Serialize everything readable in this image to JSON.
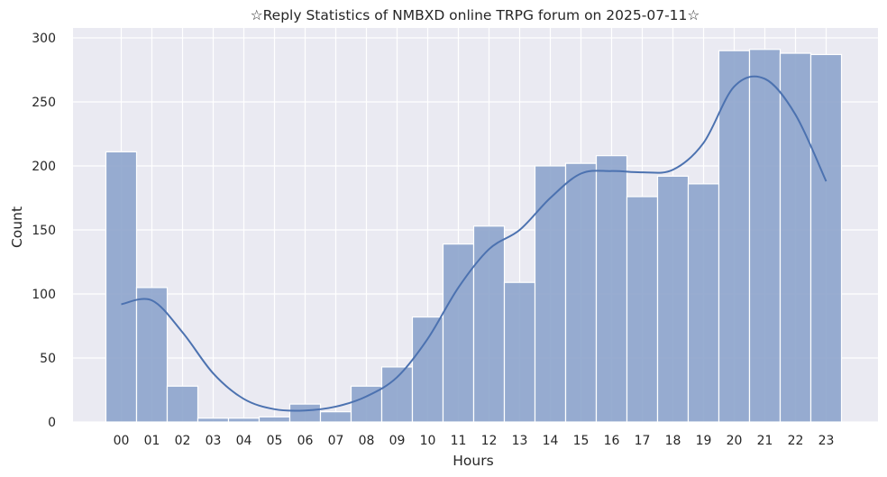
{
  "chart_data": {
    "type": "bar",
    "title": "☆Reply Statistics of NMBXD online TRPG forum on 2025-07-11☆",
    "xlabel": "Hours",
    "ylabel": "Count",
    "categories": [
      "00",
      "01",
      "02",
      "03",
      "04",
      "05",
      "06",
      "07",
      "08",
      "09",
      "10",
      "11",
      "12",
      "13",
      "14",
      "15",
      "16",
      "17",
      "18",
      "19",
      "20",
      "21",
      "22",
      "23"
    ],
    "values": [
      211,
      105,
      28,
      3,
      3,
      4,
      14,
      8,
      28,
      43,
      82,
      139,
      153,
      109,
      200,
      202,
      208,
      176,
      192,
      186,
      290,
      291,
      288,
      287
    ],
    "kde_curve": [
      92,
      95,
      70,
      38,
      18,
      10,
      9,
      12,
      20,
      35,
      65,
      105,
      135,
      150,
      175,
      194,
      196,
      195,
      197,
      218,
      262,
      268,
      240,
      188
    ],
    "yticks": [
      0,
      50,
      100,
      150,
      200,
      250,
      300
    ],
    "ylim": [
      0,
      300
    ],
    "grid": true,
    "colors": {
      "background": "#eaeaf2",
      "bar_fill": "#8da4cc",
      "bar_edge": "#ffffff",
      "line": "#4c72b0",
      "grid": "#ffffff"
    }
  }
}
